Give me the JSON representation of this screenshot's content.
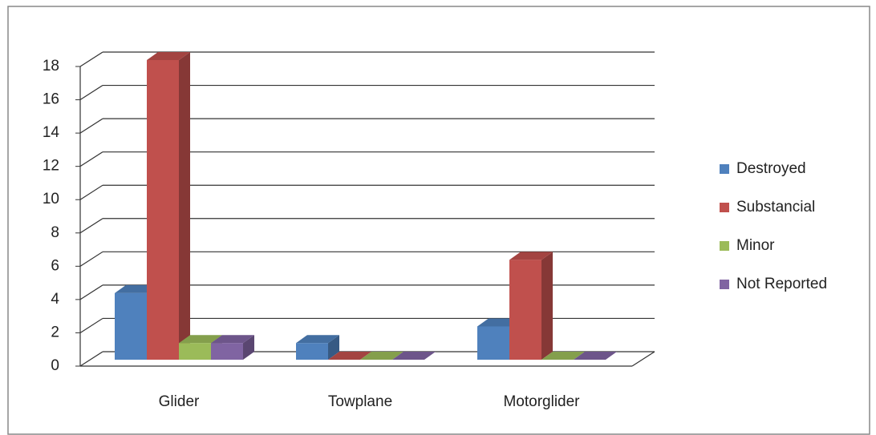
{
  "chart_data": {
    "type": "bar3d",
    "categories": [
      "Glider",
      "Towplane",
      "Motorglider"
    ],
    "series": [
      {
        "name": "Destroyed",
        "color": "#4f81bd",
        "values": [
          4,
          1,
          2
        ]
      },
      {
        "name": "Substancial",
        "color": "#c0504d",
        "values": [
          18,
          0,
          6
        ]
      },
      {
        "name": "Minor",
        "color": "#9bbb59",
        "values": [
          1,
          0,
          0
        ]
      },
      {
        "name": "Not Reported",
        "color": "#8064a2",
        "values": [
          1,
          0,
          0
        ]
      }
    ],
    "ylim": [
      0,
      18
    ],
    "yticks": [
      0,
      2,
      4,
      6,
      8,
      10,
      12,
      14,
      16,
      18
    ],
    "grid": true,
    "legend": "right"
  }
}
